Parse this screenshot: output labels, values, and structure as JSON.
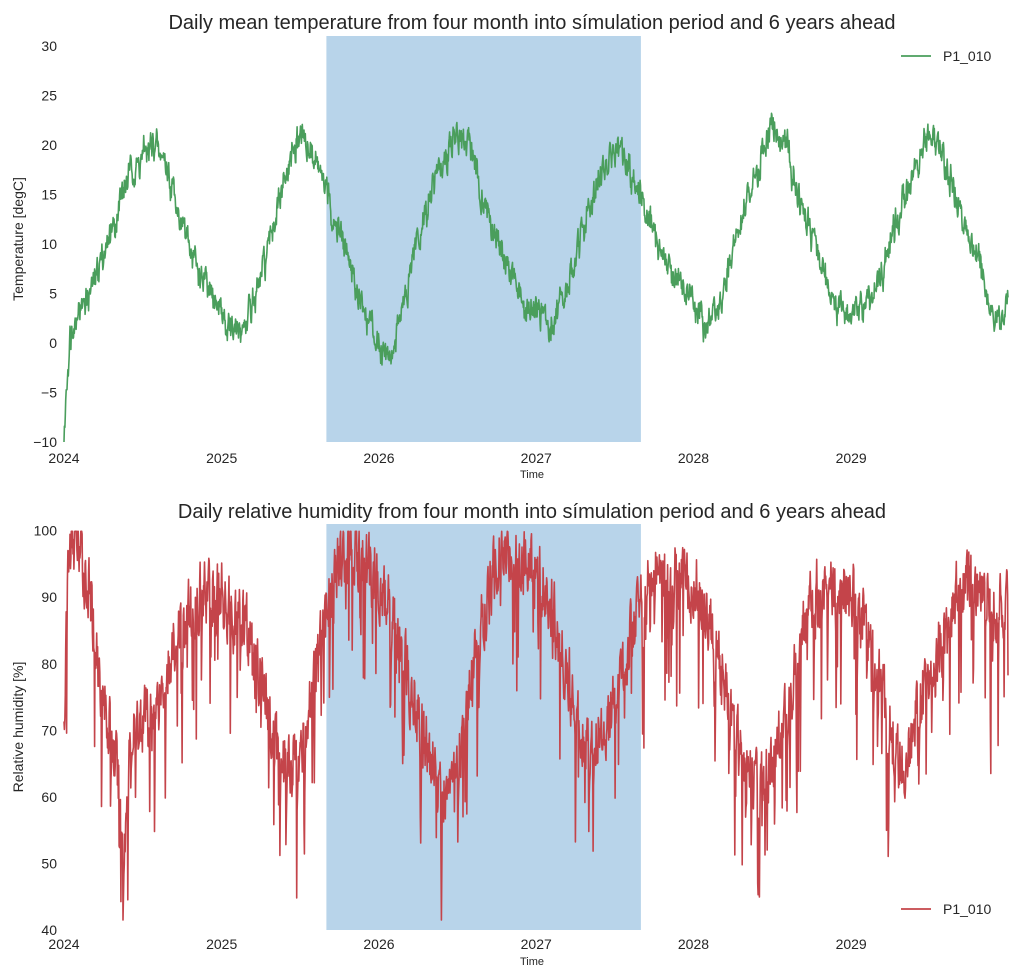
{
  "chart_data": [
    {
      "type": "line",
      "title": "Daily mean temperature from four month into símulation period and 6 years ahead",
      "xlabel": "Time",
      "ylabel": "Temperature [degC]",
      "x_range": [
        "2024-01-01",
        "2029-12-31"
      ],
      "x_ticks": [
        "2024",
        "2025",
        "2026",
        "2027",
        "2028",
        "2029"
      ],
      "ylim": [
        -10,
        31
      ],
      "y_ticks": [
        -10,
        -5,
        0,
        5,
        10,
        15,
        20,
        25,
        30
      ],
      "grid": false,
      "legend_position": "top-right",
      "shaded_span": {
        "start": "2025-09-01",
        "end": "2027-09-01",
        "color": "#b8d4ea"
      },
      "series": [
        {
          "name": "P1_010",
          "color": "#4a9e5c",
          "points": [
            [
              "2024-01-01",
              -10.0
            ],
            [
              "2024-01-08",
              -3.0
            ],
            [
              "2024-01-15",
              1.0
            ],
            [
              "2024-02-01",
              3.5
            ],
            [
              "2024-03-01",
              5.0
            ],
            [
              "2024-04-01",
              9.0
            ],
            [
              "2024-05-01",
              13.0
            ],
            [
              "2024-06-01",
              17.0
            ],
            [
              "2024-07-01",
              19.0
            ],
            [
              "2024-08-01",
              20.0
            ],
            [
              "2024-09-01",
              17.0
            ],
            [
              "2024-10-01",
              12.0
            ],
            [
              "2024-11-01",
              8.0
            ],
            [
              "2024-12-01",
              5.0
            ],
            [
              "2025-01-01",
              3.0
            ],
            [
              "2025-02-01",
              0.5
            ],
            [
              "2025-03-01",
              2.0
            ],
            [
              "2025-04-01",
              6.0
            ],
            [
              "2025-05-01",
              12.0
            ],
            [
              "2025-06-01",
              17.0
            ],
            [
              "2025-07-01",
              21.0
            ],
            [
              "2025-08-01",
              19.0
            ],
            [
              "2025-09-01",
              15.0
            ],
            [
              "2025-10-01",
              11.0
            ],
            [
              "2025-11-01",
              7.0
            ],
            [
              "2025-12-01",
              3.0
            ],
            [
              "2026-01-01",
              0.0
            ],
            [
              "2026-02-01",
              -1.0
            ],
            [
              "2026-03-01",
              4.0
            ],
            [
              "2026-04-01",
              10.0
            ],
            [
              "2026-05-01",
              15.0
            ],
            [
              "2026-06-01",
              19.0
            ],
            [
              "2026-07-01",
              21.0
            ],
            [
              "2026-08-01",
              20.0
            ],
            [
              "2026-09-01",
              14.0
            ],
            [
              "2026-10-01",
              11.0
            ],
            [
              "2026-11-01",
              7.0
            ],
            [
              "2026-12-01",
              4.0
            ],
            [
              "2027-01-01",
              3.0
            ],
            [
              "2027-02-01",
              2.0
            ],
            [
              "2027-03-01",
              3.5
            ],
            [
              "2027-04-01",
              8.0
            ],
            [
              "2027-05-01",
              13.0
            ],
            [
              "2027-06-01",
              17.0
            ],
            [
              "2027-07-01",
              19.0
            ],
            [
              "2027-08-01",
              18.5
            ],
            [
              "2027-09-01",
              15.0
            ],
            [
              "2027-10-01",
              11.0
            ],
            [
              "2027-11-01",
              8.0
            ],
            [
              "2027-12-01",
              6.0
            ],
            [
              "2028-01-01",
              4.0
            ],
            [
              "2028-02-01",
              2.0
            ],
            [
              "2028-03-01",
              4.0
            ],
            [
              "2028-04-01",
              9.0
            ],
            [
              "2028-05-01",
              14.0
            ],
            [
              "2028-06-01",
              18.0
            ],
            [
              "2028-07-01",
              22.0
            ],
            [
              "2028-08-01",
              20.0
            ],
            [
              "2028-09-01",
              15.0
            ],
            [
              "2028-10-01",
              11.0
            ],
            [
              "2028-11-01",
              7.0
            ],
            [
              "2028-12-01",
              3.0
            ],
            [
              "2029-01-01",
              3.0
            ],
            [
              "2029-02-01",
              4.0
            ],
            [
              "2029-03-01",
              5.0
            ],
            [
              "2029-04-01",
              10.0
            ],
            [
              "2029-05-01",
              14.0
            ],
            [
              "2029-06-01",
              18.0
            ],
            [
              "2029-07-01",
              21.0
            ],
            [
              "2029-08-01",
              19.0
            ],
            [
              "2029-09-01",
              15.0
            ],
            [
              "2029-10-01",
              11.0
            ],
            [
              "2029-11-01",
              7.0
            ],
            [
              "2029-12-01",
              2.0
            ],
            [
              "2029-12-31",
              4.0
            ]
          ]
        }
      ]
    },
    {
      "type": "line",
      "title": "Daily relative humidity from four month into símulation period and 6 years ahead",
      "xlabel": "Time",
      "ylabel": "Relative humidity [%]",
      "x_range": [
        "2024-01-01",
        "2029-12-31"
      ],
      "x_ticks": [
        "2024",
        "2025",
        "2026",
        "2027",
        "2028",
        "2029"
      ],
      "ylim": [
        40,
        101
      ],
      "y_ticks": [
        40,
        50,
        60,
        70,
        80,
        90,
        100
      ],
      "grid": false,
      "legend_position": "bottom-right",
      "shaded_span": {
        "start": "2025-09-01",
        "end": "2027-09-01",
        "color": "#b8d4ea"
      },
      "series": [
        {
          "name": "P1_010",
          "color": "#c4444a",
          "points": [
            [
              "2024-01-01",
              70.0
            ],
            [
              "2024-01-10",
              96.0
            ],
            [
              "2024-01-20",
              98.0
            ],
            [
              "2024-02-01",
              99.0
            ],
            [
              "2024-03-01",
              90.0
            ],
            [
              "2024-04-01",
              75.0
            ],
            [
              "2024-05-01",
              65.0
            ],
            [
              "2024-05-20",
              52.0
            ],
            [
              "2024-06-01",
              68.0
            ],
            [
              "2024-07-01",
              72.0
            ],
            [
              "2024-08-01",
              74.0
            ],
            [
              "2024-09-01",
              80.0
            ],
            [
              "2024-10-01",
              86.0
            ],
            [
              "2024-11-01",
              90.0
            ],
            [
              "2024-12-01",
              91.0
            ],
            [
              "2025-01-01",
              90.0
            ],
            [
              "2025-02-01",
              88.0
            ],
            [
              "2025-03-01",
              85.0
            ],
            [
              "2025-04-01",
              78.0
            ],
            [
              "2025-05-01",
              70.0
            ],
            [
              "2025-06-01",
              64.0
            ],
            [
              "2025-07-01",
              66.0
            ],
            [
              "2025-08-01",
              75.0
            ],
            [
              "2025-09-01",
              88.0
            ],
            [
              "2025-10-01",
              96.0
            ],
            [
              "2025-11-01",
              97.0
            ],
            [
              "2025-12-01",
              95.0
            ],
            [
              "2026-01-01",
              92.0
            ],
            [
              "2026-02-01",
              88.0
            ],
            [
              "2026-03-01",
              80.0
            ],
            [
              "2026-04-01",
              72.0
            ],
            [
              "2026-05-01",
              66.0
            ],
            [
              "2026-06-01",
              60.0
            ],
            [
              "2026-07-01",
              65.0
            ],
            [
              "2026-08-01",
              76.0
            ],
            [
              "2026-09-01",
              88.0
            ],
            [
              "2026-10-01",
              95.0
            ],
            [
              "2026-11-01",
              97.0
            ],
            [
              "2026-12-01",
              96.0
            ],
            [
              "2027-01-01",
              95.0
            ],
            [
              "2027-02-01",
              90.0
            ],
            [
              "2027-03-01",
              82.0
            ],
            [
              "2027-04-01",
              74.0
            ],
            [
              "2027-05-01",
              68.0
            ],
            [
              "2027-06-01",
              70.0
            ],
            [
              "2027-07-01",
              73.0
            ],
            [
              "2027-08-01",
              82.0
            ],
            [
              "2027-09-01",
              90.0
            ],
            [
              "2027-10-01",
              93.0
            ],
            [
              "2027-11-01",
              94.0
            ],
            [
              "2027-12-01",
              93.0
            ],
            [
              "2028-01-01",
              92.0
            ],
            [
              "2028-02-01",
              88.0
            ],
            [
              "2028-03-01",
              80.0
            ],
            [
              "2028-04-01",
              72.0
            ],
            [
              "2028-05-01",
              66.0
            ],
            [
              "2028-06-01",
              62.0
            ],
            [
              "2028-07-01",
              65.0
            ],
            [
              "2028-08-01",
              72.0
            ],
            [
              "2028-09-01",
              82.0
            ],
            [
              "2028-10-01",
              90.0
            ],
            [
              "2028-11-01",
              92.0
            ],
            [
              "2028-12-01",
              91.0
            ],
            [
              "2029-01-01",
              90.0
            ],
            [
              "2029-02-01",
              87.0
            ],
            [
              "2029-03-01",
              80.0
            ],
            [
              "2029-04-01",
              70.0
            ],
            [
              "2029-05-01",
              64.0
            ],
            [
              "2029-06-01",
              72.0
            ],
            [
              "2029-07-01",
              78.0
            ],
            [
              "2029-08-01",
              84.0
            ],
            [
              "2029-09-01",
              90.0
            ],
            [
              "2029-10-01",
              92.0
            ],
            [
              "2029-11-01",
              90.0
            ],
            [
              "2029-12-01",
              88.0
            ],
            [
              "2029-12-31",
              89.0
            ]
          ]
        }
      ]
    }
  ]
}
